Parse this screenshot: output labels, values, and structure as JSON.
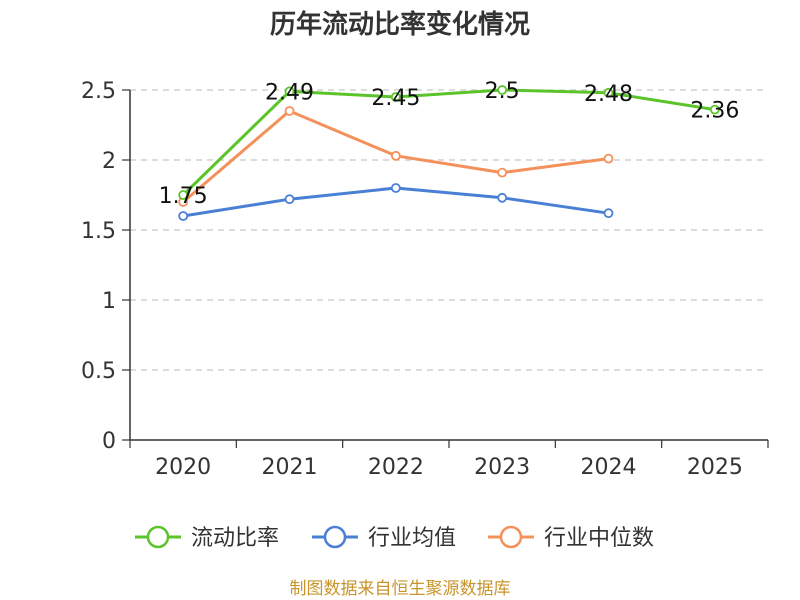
{
  "chart_data": {
    "type": "line",
    "title": "历年流动比率变化情况",
    "categories": [
      "2020",
      "2021",
      "2022",
      "2023",
      "2024",
      "2025"
    ],
    "ylim": [
      0,
      2.5
    ],
    "yticks": [
      "0",
      "0.5",
      "1",
      "1.5",
      "2",
      "2.5"
    ],
    "ytick_values": [
      0,
      0.5,
      1,
      1.5,
      2,
      2.5
    ],
    "grid": true,
    "legend_position": "bottom",
    "series": [
      {
        "name": "流动比率",
        "color": "#5bc42a",
        "values": [
          1.75,
          2.49,
          2.45,
          2.5,
          2.48,
          2.36
        ],
        "labels": [
          "1.75",
          "2.49",
          "2.45",
          "2.5",
          "2.48",
          "2.36"
        ]
      },
      {
        "name": "行业均值",
        "color": "#4a7fd6",
        "values": [
          1.6,
          1.72,
          1.8,
          1.73,
          1.62,
          null
        ]
      },
      {
        "name": "行业中位数",
        "color": "#f4915a",
        "values": [
          1.7,
          2.35,
          2.03,
          1.91,
          2.01,
          null
        ]
      }
    ]
  },
  "source": "制图数据来自恒生聚源数据库"
}
